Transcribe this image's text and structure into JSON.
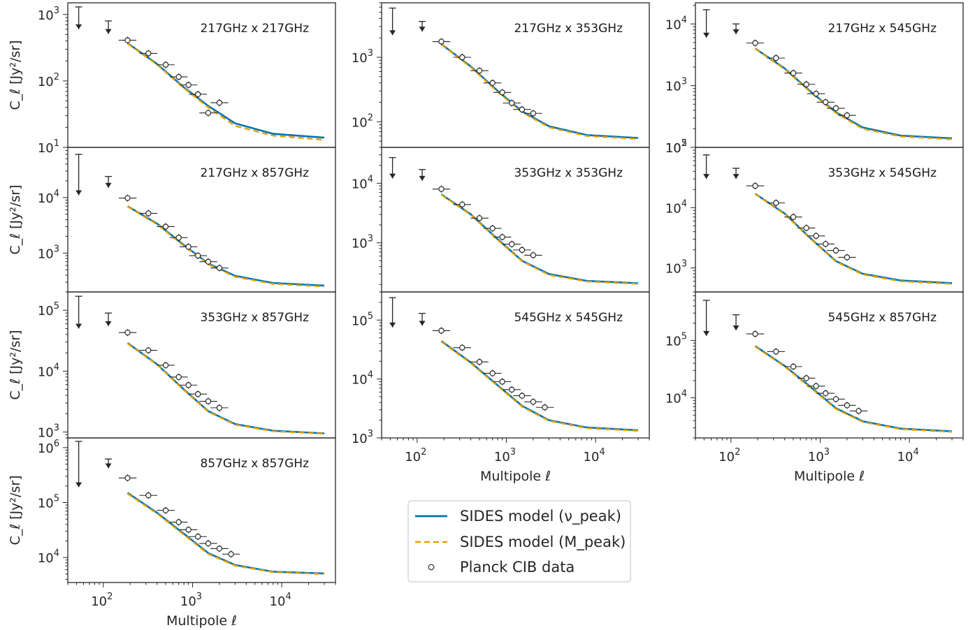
{
  "chart_data": {
    "type": "line",
    "x_scale": "log",
    "y_scale": "log",
    "xlim": [
      40,
      40000
    ],
    "xlabel": "Multipole ℓ",
    "ylabel": "C_ℓ [Jy²/sr]",
    "legend": {
      "placement": "lower-center",
      "entries": [
        {
          "label": "SIDES model (ν_peak)",
          "style": "solid",
          "color": "#0072b2"
        },
        {
          "label": "SIDES model (M_peak)",
          "style": "dashed",
          "color": "#e69f00"
        },
        {
          "label": "Planck CIB data",
          "style": "open-circle",
          "color": "#262626"
        }
      ]
    },
    "panels": [
      {
        "title": "217GHz x 217GHz",
        "ylim": [
          10,
          1500
        ],
        "model_x": [
          187,
          400,
          800,
          1500,
          3000,
          8000,
          30000
        ],
        "model_nu_peak": [
          370,
          180,
          80,
          42,
          23,
          16,
          14
        ],
        "model_m_peak": [
          365,
          176,
          78,
          40,
          21,
          15,
          13
        ],
        "data_x": [
          187,
          320,
          500,
          700,
          900,
          1150,
          1500,
          2000
        ],
        "data_y": [
          410,
          260,
          175,
          115,
          87,
          63,
          33,
          47
        ],
        "upper_x": [
          53,
          114
        ],
        "upper_top": [
          1300,
          800
        ],
        "upper_bottom": [
          600,
          510
        ]
      },
      {
        "title": "217GHz x 353GHz",
        "ylim": [
          40,
          7000
        ],
        "model_x": [
          187,
          400,
          800,
          1500,
          3000,
          8000,
          30000
        ],
        "model_nu_peak": [
          1600,
          720,
          300,
          145,
          85,
          62,
          56
        ],
        "model_m_peak": [
          1580,
          700,
          290,
          140,
          82,
          60,
          54
        ],
        "data_x": [
          187,
          320,
          500,
          700,
          900,
          1150,
          1500,
          2000
        ],
        "data_y": [
          1750,
          1000,
          620,
          400,
          285,
          195,
          155,
          135
        ],
        "upper_x": [
          53,
          114
        ],
        "upper_top": [
          5800,
          3600
        ],
        "upper_bottom": [
          2200,
          2500
        ]
      },
      {
        "title": "217GHz x 545GHz",
        "ylim": [
          100,
          22000
        ],
        "model_x": [
          187,
          400,
          800,
          1500,
          3000,
          8000,
          30000
        ],
        "model_nu_peak": [
          4000,
          1900,
          780,
          370,
          210,
          155,
          140
        ],
        "model_m_peak": [
          3950,
          1850,
          760,
          360,
          200,
          150,
          135
        ],
        "data_x": [
          187,
          320,
          500,
          700,
          900,
          1150,
          1500,
          2000
        ],
        "data_y": [
          4900,
          2800,
          1600,
          1050,
          740,
          540,
          430,
          330
        ],
        "upper_x": [
          53,
          114
        ],
        "upper_top": [
          17000,
          10000
        ],
        "upper_bottom": [
          6000,
          6800
        ]
      },
      {
        "title": "217GHz x 857GHz",
        "ylim": [
          200,
          80000
        ],
        "model_x": [
          187,
          400,
          800,
          1500,
          3000,
          8000,
          30000
        ],
        "model_nu_peak": [
          7000,
          3400,
          1400,
          650,
          390,
          290,
          260
        ],
        "model_m_peak": [
          6900,
          3300,
          1350,
          630,
          375,
          280,
          250
        ],
        "data_x": [
          187,
          320,
          500,
          700,
          900,
          1150,
          1500,
          2000
        ],
        "data_y": [
          9800,
          5200,
          3000,
          1900,
          1300,
          900,
          700,
          540
        ],
        "upper_x": [
          53,
          114
        ],
        "upper_top": [
          60000,
          24000
        ],
        "upper_bottom": [
          11000,
          15000
        ]
      },
      {
        "title": "353GHz x 353GHz",
        "ylim": [
          150,
          40000
        ],
        "model_x": [
          187,
          400,
          800,
          1500,
          3000,
          8000,
          30000
        ],
        "model_nu_peak": [
          6500,
          3000,
          1150,
          500,
          300,
          230,
          210
        ],
        "model_m_peak": [
          6400,
          2950,
          1120,
          490,
          290,
          225,
          205
        ],
        "data_x": [
          187,
          320,
          500,
          700,
          900,
          1150,
          1500,
          2000
        ],
        "data_y": [
          8000,
          4400,
          2600,
          1750,
          1250,
          950,
          760,
          620
        ],
        "upper_x": [
          53,
          114
        ],
        "upper_top": [
          27000,
          17000
        ],
        "upper_bottom": [
          12000,
          11000
        ]
      },
      {
        "title": "353GHz x 545GHz",
        "ylim": [
          400,
          100000
        ],
        "model_x": [
          187,
          400,
          800,
          1500,
          3000,
          8000,
          30000
        ],
        "model_nu_peak": [
          17000,
          8000,
          3000,
          1300,
          800,
          620,
          560
        ],
        "model_m_peak": [
          16800,
          7800,
          2950,
          1270,
          780,
          600,
          545
        ],
        "data_x": [
          187,
          320,
          500,
          700,
          900,
          1150,
          1500,
          2000
        ],
        "data_y": [
          23000,
          12000,
          7000,
          4600,
          3400,
          2500,
          1950,
          1500
        ],
        "upper_x": [
          53,
          114
        ],
        "upper_top": [
          75000,
          45000
        ],
        "upper_bottom": [
          30000,
          30000
        ]
      },
      {
        "title": "353GHz x 857GHz",
        "ylim": [
          800,
          200000
        ],
        "model_x": [
          187,
          400,
          800,
          1500,
          3000,
          8000,
          30000
        ],
        "model_nu_peak": [
          29000,
          13000,
          5000,
          2200,
          1350,
          1050,
          950
        ],
        "model_m_peak": [
          28500,
          12800,
          4900,
          2150,
          1320,
          1030,
          940
        ],
        "data_x": [
          187,
          320,
          500,
          700,
          900,
          1150,
          1500,
          2000
        ],
        "data_y": [
          43000,
          22000,
          12500,
          8000,
          5900,
          4200,
          3200,
          2500
        ],
        "upper_x": [
          53,
          114
        ],
        "upper_top": [
          170000,
          90000
        ],
        "upper_bottom": [
          50000,
          55000
        ]
      },
      {
        "title": "545GHz x 545GHz",
        "ylim": [
          1000,
          300000
        ],
        "model_x": [
          187,
          400,
          800,
          1500,
          3000,
          8000,
          30000
        ],
        "model_nu_peak": [
          44000,
          19000,
          7800,
          3500,
          2000,
          1500,
          1350
        ],
        "model_m_peak": [
          43000,
          18500,
          7600,
          3400,
          1950,
          1460,
          1320
        ],
        "data_x": [
          187,
          320,
          500,
          700,
          900,
          1150,
          1500,
          2000,
          2700
        ],
        "data_y": [
          66000,
          34000,
          19500,
          12500,
          9000,
          6600,
          5200,
          4100,
          3300
        ],
        "upper_x": [
          53,
          114
        ],
        "upper_top": [
          240000,
          130000
        ],
        "upper_bottom": [
          75000,
          80000
        ]
      },
      {
        "title": "545GHz x 857GHz",
        "ylim": [
          2000,
          700000
        ],
        "model_x": [
          187,
          400,
          800,
          1500,
          3000,
          8000,
          30000
        ],
        "model_nu_peak": [
          80000,
          36000,
          15000,
          6600,
          3900,
          2900,
          2600
        ],
        "model_m_peak": [
          78000,
          35000,
          14500,
          6400,
          3800,
          2850,
          2550
        ],
        "data_x": [
          187,
          320,
          500,
          700,
          900,
          1150,
          1500,
          2000,
          2700
        ],
        "data_y": [
          130000,
          64000,
          35000,
          22000,
          16000,
          12000,
          9500,
          7400,
          5900
        ],
        "upper_x": [
          53,
          114
        ],
        "upper_top": [
          500000,
          280000
        ],
        "upper_bottom": [
          120000,
          150000
        ]
      },
      {
        "title": "857GHz x 857GHz",
        "ylim": [
          3500,
          1500000
        ],
        "model_x": [
          187,
          400,
          800,
          1500,
          3000,
          8000,
          30000
        ],
        "model_nu_peak": [
          150000,
          65000,
          27000,
          12000,
          7300,
          5500,
          5100
        ],
        "model_m_peak": [
          145000,
          63000,
          26000,
          11600,
          7100,
          5400,
          5000
        ],
        "data_x": [
          187,
          320,
          500,
          700,
          900,
          1150,
          1500,
          2000,
          2700
        ],
        "data_y": [
          280000,
          135000,
          72000,
          44000,
          32000,
          24000,
          18000,
          14500,
          11500
        ],
        "upper_x": [
          53,
          114
        ],
        "upper_top": [
          1300000,
          620000
        ],
        "upper_bottom": [
          190000,
          420000
        ]
      }
    ]
  }
}
